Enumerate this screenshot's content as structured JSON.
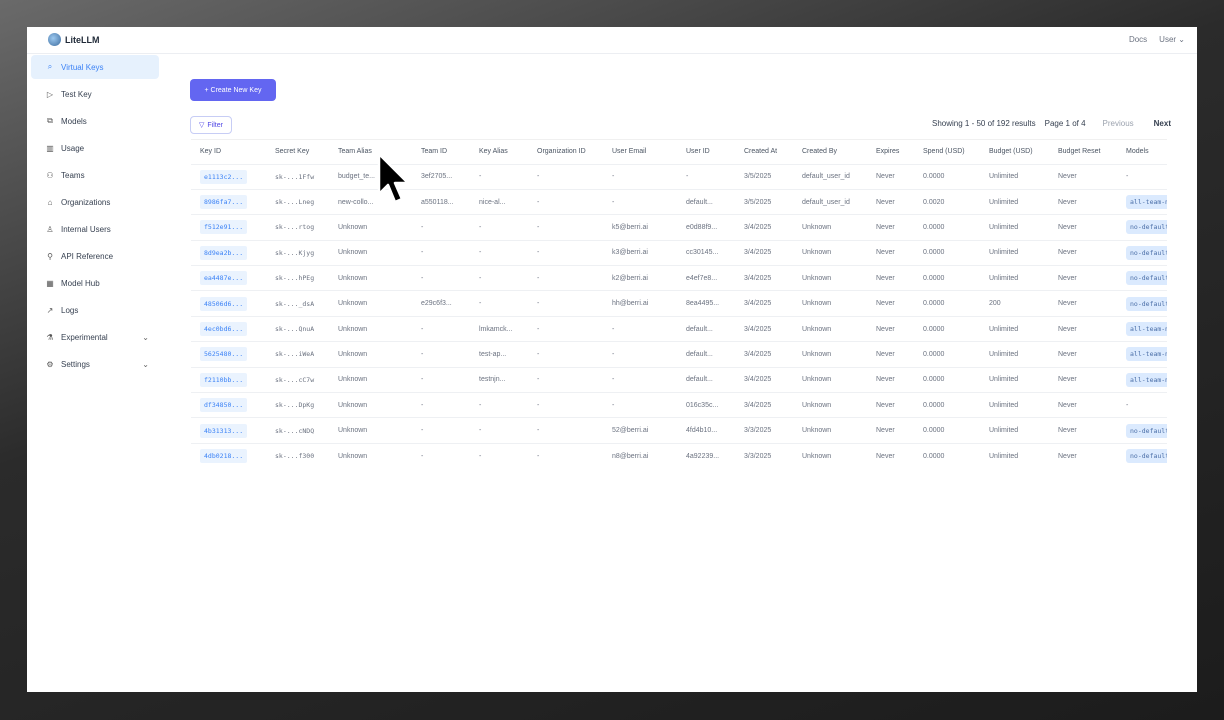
{
  "header": {
    "app_name": "LiteLLM",
    "docs": "Docs",
    "user": "User"
  },
  "sidebar": {
    "items": [
      {
        "label": "Virtual Keys",
        "icon": "search-icon",
        "active": true
      },
      {
        "label": "Test Key",
        "icon": "play-circle-icon"
      },
      {
        "label": "Models",
        "icon": "blocks-icon"
      },
      {
        "label": "Usage",
        "icon": "bar-chart-icon"
      },
      {
        "label": "Teams",
        "icon": "team-icon"
      },
      {
        "label": "Organizations",
        "icon": "bank-icon"
      },
      {
        "label": "Internal Users",
        "icon": "user-icon"
      },
      {
        "label": "API Reference",
        "icon": "api-icon"
      },
      {
        "label": "Model Hub",
        "icon": "apps-icon"
      },
      {
        "label": "Logs",
        "icon": "line-chart-icon"
      },
      {
        "label": "Experimental",
        "icon": "experiment-icon",
        "expandable": true
      },
      {
        "label": "Settings",
        "icon": "gear-icon",
        "expandable": true
      }
    ]
  },
  "main": {
    "create_button": "+ Create New Key",
    "filter_button": "Filter",
    "pagination": {
      "showing": "Showing 1 - 50 of 192 results",
      "page": "Page 1 of 4",
      "previous": "Previous",
      "next": "Next"
    },
    "table": {
      "columns": [
        "Key ID",
        "Secret Key",
        "Team Alias",
        "Team ID",
        "Key Alias",
        "Organization ID",
        "User Email",
        "User ID",
        "Created At",
        "Created By",
        "Expires",
        "Spend (USD)",
        "Budget (USD)",
        "Budget Reset",
        "Models"
      ],
      "rows": [
        [
          "e1113c2...",
          "sk-...1Ffw",
          "budget_te...",
          "3ef2705...",
          "-",
          "-",
          "-",
          "-",
          "3/5/2025",
          "default_user_id",
          "Never",
          "0.0000",
          "Unlimited",
          "Never",
          "-"
        ],
        [
          "8986fa7...",
          "sk-...Lneg",
          "new-collo...",
          "a550118...",
          "nice-al...",
          "-",
          "-",
          "default...",
          "3/5/2025",
          "default_user_id",
          "Never",
          "0.0020",
          "Unlimited",
          "Never",
          "all-team-m"
        ],
        [
          "f512e91...",
          "sk-...rtog",
          "Unknown",
          "-",
          "-",
          "-",
          "k5@berri.ai",
          "e0d88f9...",
          "3/4/2025",
          "Unknown",
          "Never",
          "0.0000",
          "Unlimited",
          "Never",
          "no-default"
        ],
        [
          "8d9ea2b...",
          "sk-...Kjyg",
          "Unknown",
          "-",
          "-",
          "-",
          "k3@berri.ai",
          "cc30145...",
          "3/4/2025",
          "Unknown",
          "Never",
          "0.0000",
          "Unlimited",
          "Never",
          "no-default"
        ],
        [
          "ea4487e...",
          "sk-...hPEg",
          "Unknown",
          "-",
          "-",
          "-",
          "k2@berri.ai",
          "e4ef7e8...",
          "3/4/2025",
          "Unknown",
          "Never",
          "0.0000",
          "Unlimited",
          "Never",
          "no-default"
        ],
        [
          "48506d6...",
          "sk-..._dsA",
          "Unknown",
          "e29c6f3...",
          "-",
          "-",
          "hh@berri.ai",
          "8ea4495...",
          "3/4/2025",
          "Unknown",
          "Never",
          "0.0000",
          "200",
          "Never",
          "no-default"
        ],
        [
          "4ec0bd6...",
          "sk-...QnuA",
          "Unknown",
          "-",
          "lmkamck...",
          "-",
          "-",
          "default...",
          "3/4/2025",
          "Unknown",
          "Never",
          "0.0000",
          "Unlimited",
          "Never",
          "all-team-m"
        ],
        [
          "5625480...",
          "sk-...iWeA",
          "Unknown",
          "-",
          "test-ap...",
          "-",
          "-",
          "default...",
          "3/4/2025",
          "Unknown",
          "Never",
          "0.0000",
          "Unlimited",
          "Never",
          "all-team-m"
        ],
        [
          "f2110bb...",
          "sk-...cC7w",
          "Unknown",
          "-",
          "testnjn...",
          "-",
          "-",
          "default...",
          "3/4/2025",
          "Unknown",
          "Never",
          "0.0000",
          "Unlimited",
          "Never",
          "all-team-m"
        ],
        [
          "df34850...",
          "sk-...DpKg",
          "Unknown",
          "-",
          "-",
          "-",
          "-",
          "016c35c...",
          "3/4/2025",
          "Unknown",
          "Never",
          "0.0000",
          "Unlimited",
          "Never",
          "-"
        ],
        [
          "4b31313...",
          "sk-...cNDQ",
          "Unknown",
          "-",
          "-",
          "-",
          "52@berri.ai",
          "4fd4b10...",
          "3/3/2025",
          "Unknown",
          "Never",
          "0.0000",
          "Unlimited",
          "Never",
          "no-default"
        ],
        [
          "4db0218...",
          "sk-...f300",
          "Unknown",
          "-",
          "-",
          "-",
          "n8@berri.ai",
          "4a92239...",
          "3/3/2025",
          "Unknown",
          "Never",
          "0.0000",
          "Unlimited",
          "Never",
          "no-default"
        ]
      ]
    }
  },
  "colors": {
    "accent": "#6366f1",
    "active_nav_bg": "#e6f1fd",
    "link_blue": "#3b82f6"
  }
}
